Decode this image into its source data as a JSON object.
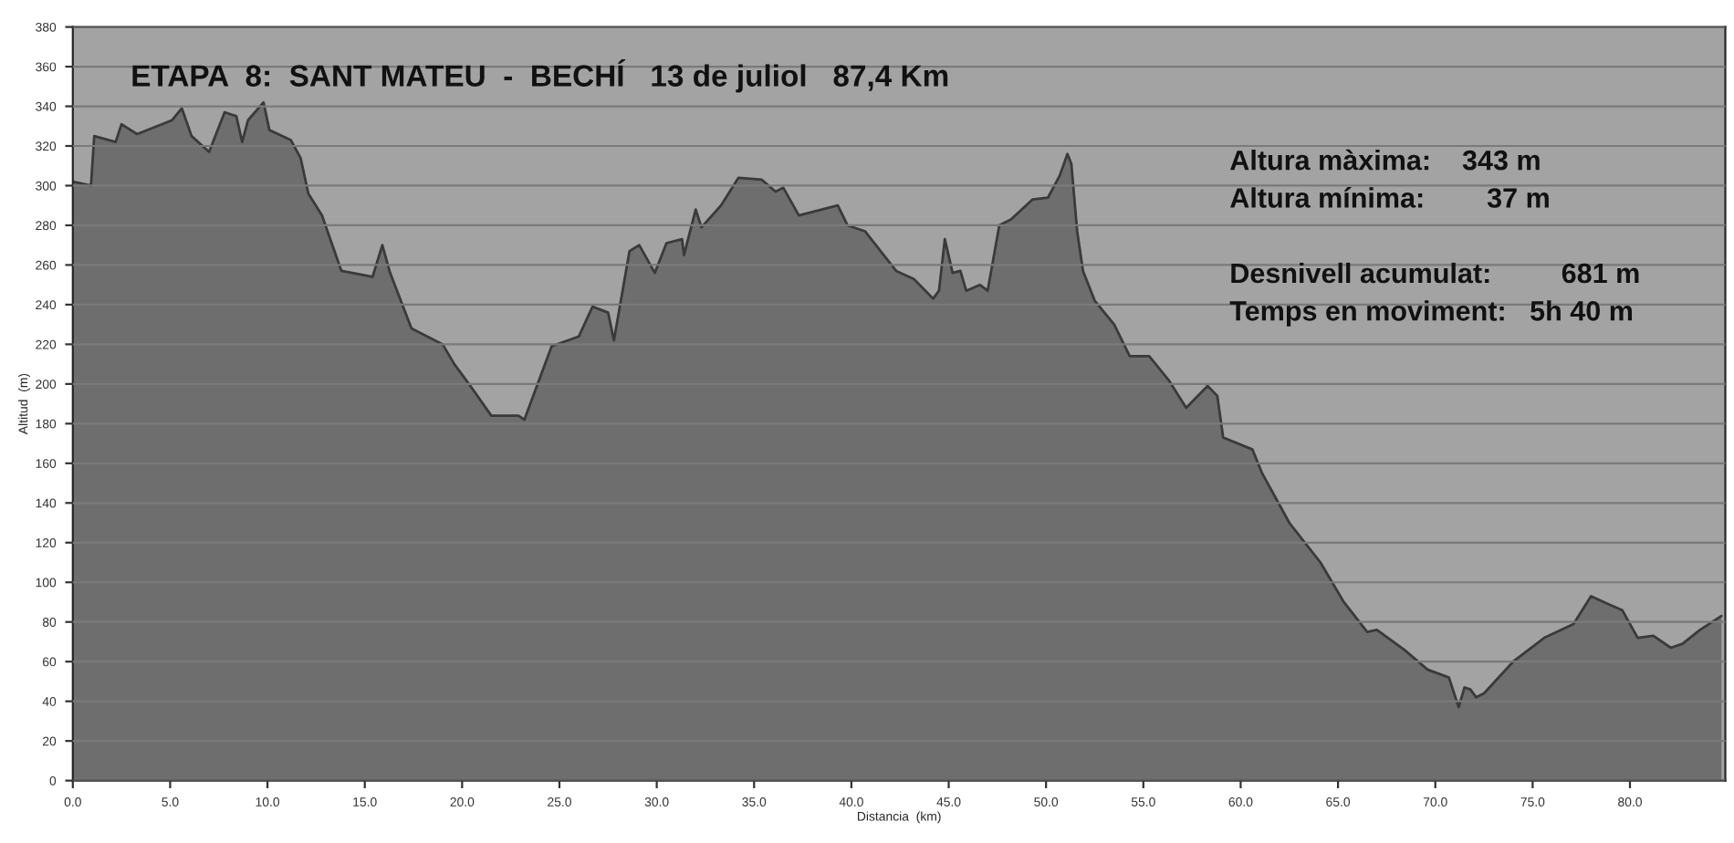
{
  "chart_data": {
    "type": "area",
    "title": "ETAPA  8:  SANT MATEU  -  BECHÍ   13 de juliol   87,4 Km",
    "xlabel": "Distancia  (km)",
    "ylabel": "Altitud  (m)",
    "annotations": [
      "Altura màxima:    343 m",
      "Altura mínima:        37 m",
      "Desnivell acumulat:         681 m",
      "Temps en moviment:   5h 40 m"
    ],
    "x": [
      0.0,
      0.93,
      1.1,
      2.2,
      2.5,
      3.3,
      5.1,
      5.6,
      6.1,
      7.0,
      7.8,
      8.4,
      8.7,
      9.0,
      9.8,
      10.1,
      11.2,
      11.7,
      12.1,
      12.8,
      13.8,
      15.4,
      15.9,
      16.3,
      17.4,
      19.0,
      19.6,
      20.5,
      21.5,
      22.9,
      23.2,
      24.6,
      26.0,
      26.7,
      27.5,
      27.8,
      28.6,
      29.1,
      29.9,
      30.5,
      31.3,
      31.4,
      32.0,
      32.3,
      33.3,
      34.2,
      35.4,
      36.1,
      36.5,
      37.3,
      39.3,
      39.8,
      40.7,
      42.3,
      43.2,
      44.2,
      44.5,
      44.8,
      45.2,
      45.6,
      45.9,
      46.6,
      47.0,
      47.6,
      48.2,
      49.3,
      50.1,
      50.7,
      51.1,
      51.3,
      51.6,
      51.9,
      52.5,
      53.5,
      54.3,
      55.3,
      56.3,
      57.2,
      58.3,
      58.8,
      59.1,
      60.6,
      61.1,
      62.5,
      64.1,
      65.3,
      66.5,
      67.0,
      68.4,
      69.6,
      70.7,
      71.2,
      71.5,
      71.8,
      72.1,
      72.5,
      74.0,
      75.6,
      77.1,
      78.0,
      78.9,
      79.6,
      80.4,
      81.2,
      82.1,
      82.7,
      83.6,
      84.7
    ],
    "values": [
      302,
      300,
      325,
      322,
      331,
      326,
      333,
      339,
      325,
      317,
      337,
      335,
      322,
      333,
      342,
      328,
      323,
      314,
      296,
      285,
      257,
      254,
      270,
      256,
      228,
      220,
      210,
      198,
      184,
      184,
      182,
      219,
      224,
      239,
      236,
      222,
      267,
      270,
      256,
      271,
      273,
      265,
      288,
      279,
      290,
      304,
      303,
      297,
      299,
      285,
      290,
      280,
      277,
      257,
      253,
      243,
      247,
      273,
      256,
      257,
      247,
      250,
      247,
      280,
      283,
      293,
      294,
      305,
      316,
      311,
      277,
      257,
      242,
      230,
      214,
      214,
      202,
      188,
      199,
      194,
      173,
      167,
      155,
      130,
      110,
      90,
      75,
      76,
      66,
      56,
      52,
      37,
      47,
      46,
      42,
      44,
      60,
      72,
      79,
      93,
      89,
      86,
      72,
      73,
      67,
      69,
      76,
      83
    ],
    "color": "#6e6e6e",
    "xlim": [
      0,
      84.9
    ],
    "xticks": [
      {
        "value": 0,
        "label": "0.0"
      },
      {
        "value": 5,
        "label": "5.0"
      },
      {
        "value": 10,
        "label": "10.0"
      },
      {
        "value": 15,
        "label": "15.0"
      },
      {
        "value": 20,
        "label": "20.0"
      },
      {
        "value": 25,
        "label": "25.0"
      },
      {
        "value": 30,
        "label": "30.0"
      },
      {
        "value": 35,
        "label": "35.0"
      },
      {
        "value": 40,
        "label": "40.0"
      },
      {
        "value": 45,
        "label": "45.0"
      },
      {
        "value": 50,
        "label": "50.0"
      },
      {
        "value": 55,
        "label": "55.0"
      },
      {
        "value": 60,
        "label": "60.0"
      },
      {
        "value": 65,
        "label": "65.0"
      },
      {
        "value": 70,
        "label": "70.0"
      },
      {
        "value": 75,
        "label": "75.0"
      },
      {
        "value": 80,
        "label": "80.0"
      }
    ],
    "ylim": [
      0,
      380
    ],
    "yticks": [
      0,
      20,
      40,
      60,
      80,
      100,
      120,
      140,
      160,
      180,
      200,
      220,
      240,
      260,
      280,
      300,
      320,
      340,
      360,
      380
    ],
    "grid": "y"
  }
}
